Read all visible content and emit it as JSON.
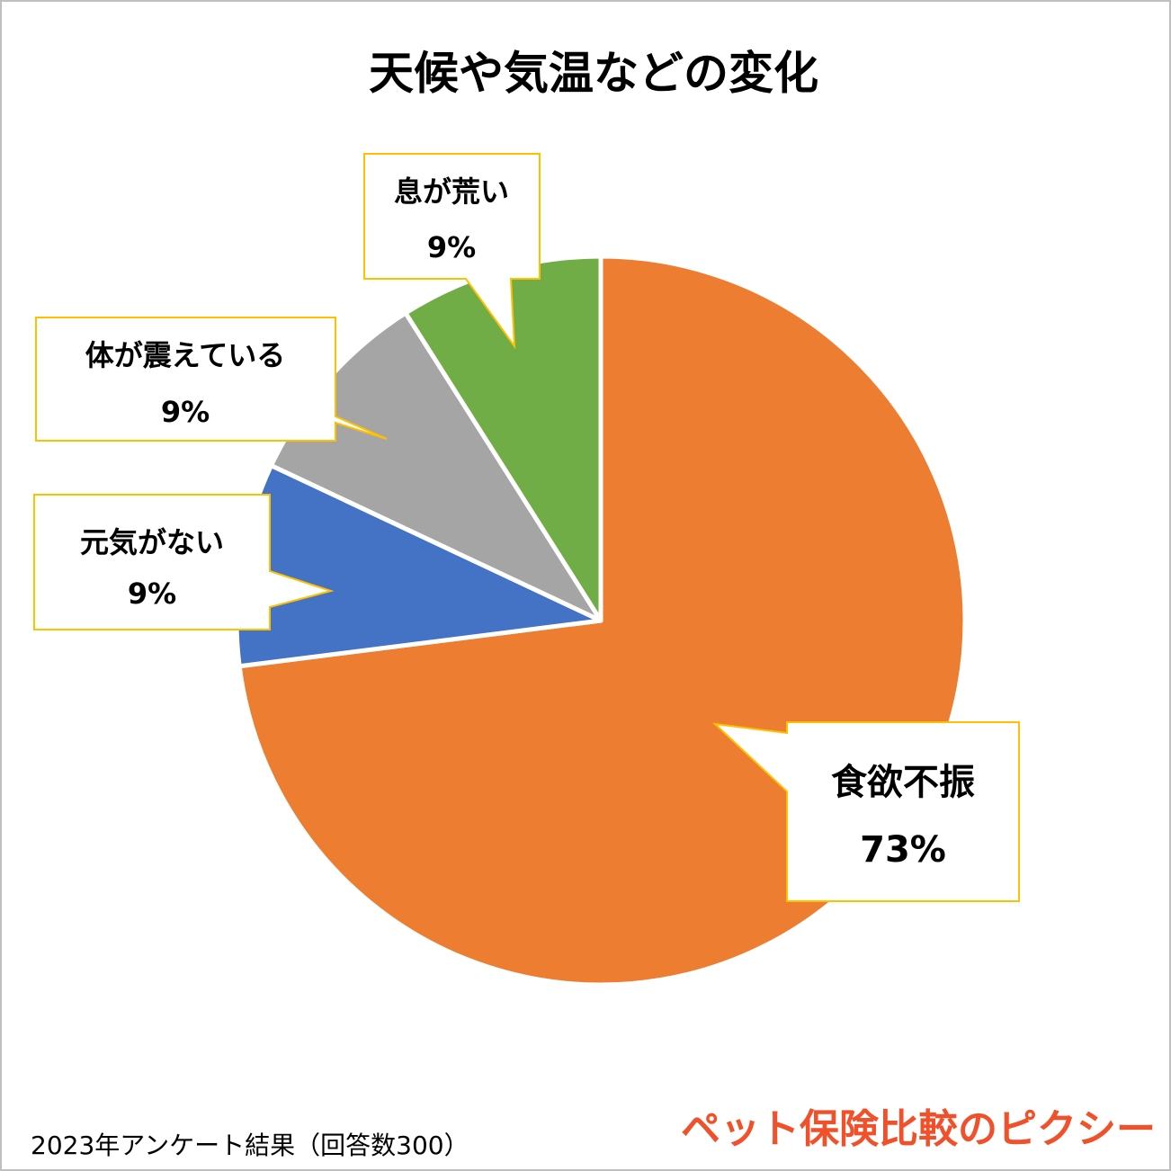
{
  "chart_data": {
    "type": "pie",
    "title": "天候や気温などの変化",
    "categories": [
      "食欲不振",
      "元気がない",
      "体が震えている",
      "息が荒い"
    ],
    "values": [
      73,
      9,
      9,
      9
    ],
    "value_labels": [
      "73%",
      "9%",
      "9%",
      "9%"
    ],
    "colors": [
      "#ed7d31",
      "#4472c4",
      "#a5a5a5",
      "#70ad47"
    ],
    "footnote": "2023年アンケート結果（回答数300）",
    "brand": "ペット保険比較のピクシー"
  }
}
